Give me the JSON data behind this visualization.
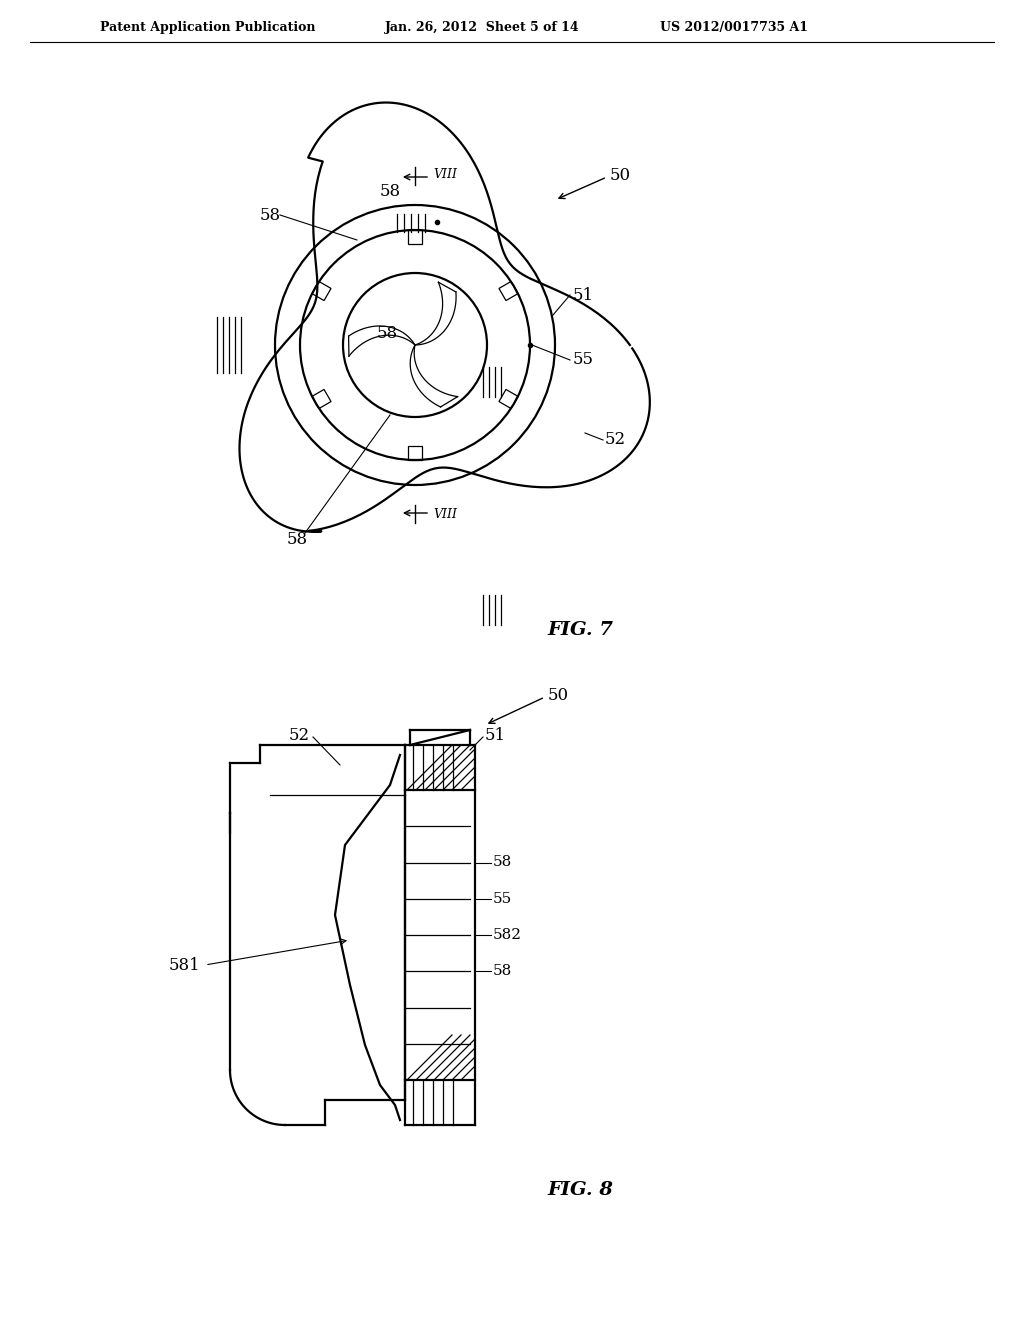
{
  "bg_color": "#ffffff",
  "header_left": "Patent Application Publication",
  "header_mid": "Jan. 26, 2012  Sheet 5 of 14",
  "header_right": "US 2012/0017735 A1",
  "fig7_label": "FIG. 7",
  "fig8_label": "FIG. 8",
  "lc": "#000000",
  "lw": 1.6,
  "tlw": 0.9
}
